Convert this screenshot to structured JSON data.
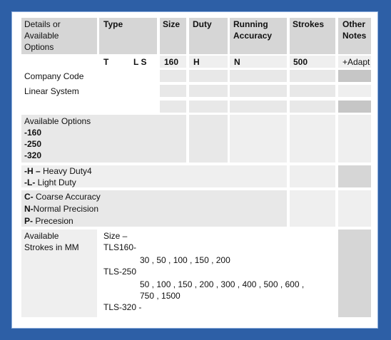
{
  "header": {
    "columns": [
      "Details or Available Options",
      "Type",
      "Size",
      "Duty",
      "Running Accuracy",
      "Strokes",
      "Other Notes"
    ]
  },
  "code_row": {
    "type_t": "T",
    "type_ls": "L S",
    "size": "160",
    "duty": "H",
    "accuracy": "N",
    "strokes": "500",
    "notes": "+Adapt"
  },
  "code_labels": [
    "Company Code",
    "Linear System"
  ],
  "size_options": {
    "title": "Available Options",
    "items": [
      "-160",
      "-250",
      "-320"
    ]
  },
  "duty_options": [
    {
      "code": "-H –",
      "text": " Heavy Duty4"
    },
    {
      "code": "-L-",
      "text": " Light Duty"
    }
  ],
  "accuracy_options": [
    {
      "code": "C-",
      "text": " Coarse Accuracy"
    },
    {
      "code": "N-",
      "text": "Normal Precision"
    },
    {
      "code": "P-",
      "text": " Precesion"
    }
  ],
  "strokes": {
    "label": "Available Strokes in MM",
    "intro": "Size –",
    "groups": [
      {
        "name": "TLS160-",
        "lines": [
          "30 , 50 , 100 , 150 , 200"
        ]
      },
      {
        "name": "TLS-250",
        "lines": [
          "50 , 100 , 150 , 200 , 300 , 400 , 500 , 600 ,",
          "750 , 1500"
        ]
      },
      {
        "name": "TLS-320 -",
        "lines": []
      }
    ]
  }
}
